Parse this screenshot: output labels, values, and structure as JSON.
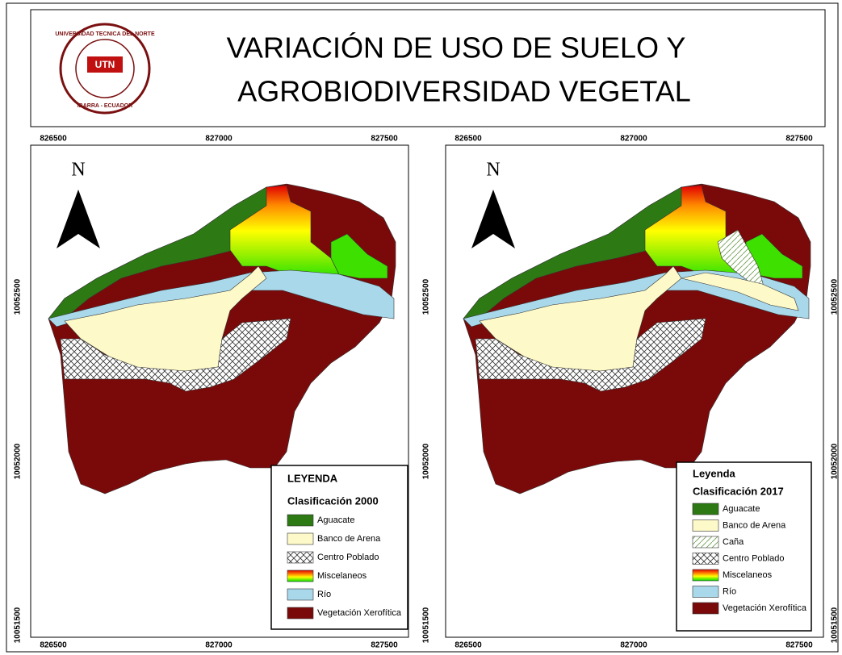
{
  "header": {
    "title_lines": [
      "VARIACIÓN DE USO DE SUELO Y",
      "AGROBIODIVERSIDAD VEGETAL"
    ],
    "logo_text": [
      "UNIVERSIDAD TECNICA DEL NORTE",
      "IBARRA - ECUADOR",
      "UTN"
    ]
  },
  "maps": [
    {
      "north": "N",
      "x_labels": [
        "826500",
        "827000",
        "827500"
      ],
      "y_labels": [
        "10052500",
        "10052000",
        "10051500"
      ],
      "legend": {
        "title": "LEYENDA",
        "subtitle": "Clasificación 2000",
        "items": [
          "Aguacate",
          "Banco de Arena",
          "Centro Poblado",
          "Miscelaneos",
          "Río",
          "Vegetación Xerofítica"
        ]
      }
    },
    {
      "north": "N",
      "x_labels": [
        "826500",
        "827000",
        "827500"
      ],
      "y_labels": [
        "10052500",
        "10052000",
        "10051500"
      ],
      "legend": {
        "title": "Leyenda",
        "subtitle": "Clasificación 2017",
        "items": [
          "Aguacate",
          "Banco de Arena",
          "Caña",
          "Centro Poblado",
          "Miscelaneos",
          "Río",
          "Vegetación Xerofítica"
        ]
      }
    }
  ]
}
